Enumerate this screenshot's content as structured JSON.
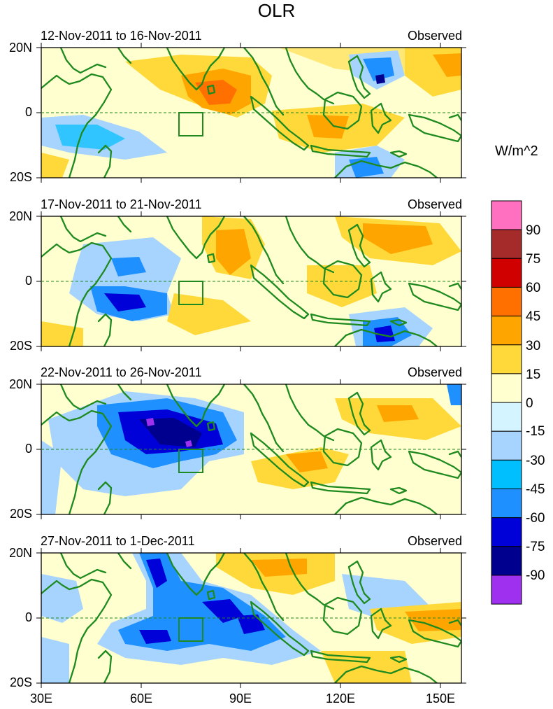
{
  "title": "OLR",
  "units": "W/m^2",
  "colorbar": {
    "labels": [
      "90",
      "75",
      "60",
      "45",
      "30",
      "15",
      "0",
      "-15",
      "-30",
      "-45",
      "-60",
      "-75",
      "-90"
    ],
    "colors": [
      "#ff70c0",
      "#a52a2a",
      "#d00000",
      "#ff7000",
      "#ffa500",
      "#ffd93a",
      "#ffffcf",
      "#d4f4ff",
      "#a6d4ff",
      "#00bfff",
      "#1e90ff",
      "#0000d8",
      "#00008f",
      "#a030f0"
    ]
  },
  "axes": {
    "lat_ticks": [
      "20N",
      "0",
      "20S"
    ],
    "lon_ticks": [
      "30E",
      "60E",
      "90E",
      "120E",
      "150E"
    ]
  },
  "panels": [
    {
      "period": "12-Nov-2011 to 16-Nov-2011",
      "label": "Observed"
    },
    {
      "period": "17-Nov-2011 to 21-Nov-2011",
      "label": "Observed"
    },
    {
      "period": "22-Nov-2011 to 26-Nov-2011",
      "label": "Observed"
    },
    {
      "period": "27-Nov-2011 to 1-Dec-2011",
      "label": "Observed"
    }
  ]
}
